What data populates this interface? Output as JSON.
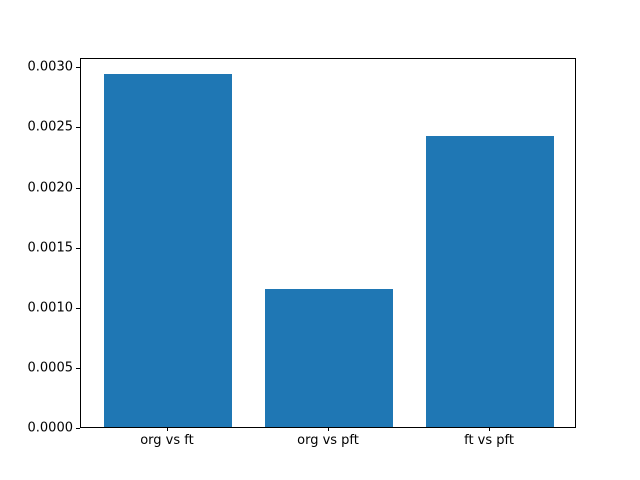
{
  "chart_data": {
    "type": "bar",
    "title": "",
    "xlabel": "",
    "ylabel": "",
    "categories": [
      "org vs ft",
      "org vs pft",
      "ft vs pft"
    ],
    "values": [
      0.002933,
      0.001151,
      0.002417
    ],
    "ylim": [
      0,
      0.003077
    ],
    "yticks": [
      0.0,
      0.0005,
      0.001,
      0.0015,
      0.002,
      0.0025,
      0.003
    ],
    "ytick_labels": [
      "0.0000",
      "0.0005",
      "0.0010",
      "0.0015",
      "0.0020",
      "0.0025",
      "0.0030"
    ],
    "bar_color": "#1f77b4",
    "bar_width_fraction": 0.8,
    "grid": false,
    "legend": "none",
    "axis_color": "#000000",
    "background_color": "#ffffff"
  }
}
